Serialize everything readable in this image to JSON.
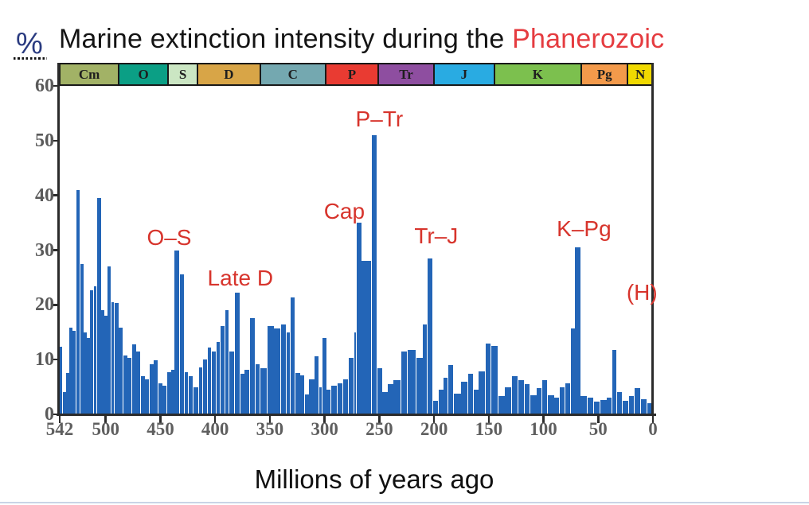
{
  "title": {
    "black_part": "Marine extinction intensity during the ",
    "red_part": "Phanerozoic"
  },
  "chart_data": {
    "type": "bar",
    "title": "Marine extinction intensity during the Phanerozoic",
    "xlabel": "Millions of years ago",
    "ylabel": "%",
    "x_range_ma": [
      542,
      0
    ],
    "ylim": [
      0,
      60
    ],
    "grid": false,
    "legend": "none",
    "y_ticks": [
      60,
      50,
      40,
      30,
      20,
      10,
      0
    ],
    "x_ticks": [
      542,
      500,
      450,
      400,
      350,
      300,
      250,
      200,
      150,
      100,
      50,
      0
    ],
    "bar_color": "#2365b7",
    "bars_format": "[start_age_Ma, end_age_Ma, extinction_intensity_percent]",
    "bars": [
      [
        542,
        539,
        12.4
      ],
      [
        539,
        536,
        4
      ],
      [
        536,
        533,
        7.5
      ],
      [
        533,
        530,
        15.8
      ],
      [
        530,
        527,
        15.2
      ],
      [
        527,
        523,
        41
      ],
      [
        523,
        520,
        27.5
      ],
      [
        520,
        517,
        15
      ],
      [
        517,
        514,
        14
      ],
      [
        514,
        511,
        22.7
      ],
      [
        511,
        508,
        23.4
      ],
      [
        508,
        504,
        39.5
      ],
      [
        504,
        501,
        19
      ],
      [
        501,
        498,
        18
      ],
      [
        498,
        495,
        27
      ],
      [
        495,
        492,
        20.5
      ],
      [
        492,
        488,
        20.3
      ],
      [
        488,
        484,
        15.9
      ],
      [
        484,
        480,
        10.8
      ],
      [
        480,
        476,
        10.3
      ],
      [
        476,
        472,
        12.8
      ],
      [
        472,
        468,
        11.5
      ],
      [
        468,
        464,
        7
      ],
      [
        464,
        460,
        6.4
      ],
      [
        460,
        456,
        9.2
      ],
      [
        456,
        452,
        9.9
      ],
      [
        452,
        448,
        5.7
      ],
      [
        448,
        444,
        5.2
      ],
      [
        444,
        440,
        7.7
      ],
      [
        440,
        437,
        8.2
      ],
      [
        437,
        432,
        30
      ],
      [
        432,
        428,
        25.5
      ],
      [
        428,
        424,
        7.7
      ],
      [
        424,
        420,
        7
      ],
      [
        420,
        415,
        5
      ],
      [
        415,
        411,
        8.6
      ],
      [
        411,
        407,
        10
      ],
      [
        407,
        403,
        12.2
      ],
      [
        403,
        399,
        11.5
      ],
      [
        399,
        395,
        13.2
      ],
      [
        395,
        391,
        16.2
      ],
      [
        391,
        387,
        19.1
      ],
      [
        387,
        382,
        11.5
      ],
      [
        382,
        377,
        22.3
      ],
      [
        377,
        373,
        7.4
      ],
      [
        373,
        368,
        8.2
      ],
      [
        368,
        363,
        17.6
      ],
      [
        363,
        359,
        9.2
      ],
      [
        359,
        352,
        8.4
      ],
      [
        352,
        346,
        16.2
      ],
      [
        346,
        340,
        15.7
      ],
      [
        340,
        335,
        16.4
      ],
      [
        335,
        331,
        15
      ],
      [
        331,
        327,
        21.3
      ],
      [
        327,
        322,
        7.5
      ],
      [
        322,
        318,
        7.1
      ],
      [
        318,
        314,
        3.6
      ],
      [
        314,
        309,
        6.4
      ],
      [
        309,
        305,
        10.6
      ],
      [
        305,
        302,
        5
      ],
      [
        302,
        298,
        14
      ],
      [
        298,
        294,
        4.5
      ],
      [
        294,
        288,
        5.2
      ],
      [
        288,
        283,
        5.7
      ],
      [
        283,
        278,
        6.4
      ],
      [
        278,
        273,
        10.3
      ],
      [
        273,
        271,
        15
      ],
      [
        271,
        266,
        35
      ],
      [
        266,
        257,
        28
      ],
      [
        257,
        252,
        51
      ],
      [
        252,
        247,
        8.5
      ],
      [
        247,
        242,
        4
      ],
      [
        242,
        237,
        5.5
      ],
      [
        237,
        230,
        6.3
      ],
      [
        230,
        224,
        11.5
      ],
      [
        224,
        216,
        11.8
      ],
      [
        216,
        210,
        10.3
      ],
      [
        210,
        206,
        16.4
      ],
      [
        206,
        201,
        28.5
      ],
      [
        201,
        196,
        2.5
      ],
      [
        196,
        191,
        4.5
      ],
      [
        191,
        187,
        6.7
      ],
      [
        187,
        182,
        9
      ],
      [
        182,
        175,
        3.8
      ],
      [
        175,
        169,
        5.9
      ],
      [
        169,
        164,
        7.4
      ],
      [
        164,
        159,
        4.5
      ],
      [
        159,
        153,
        7.9
      ],
      [
        153,
        148,
        13
      ],
      [
        148,
        141,
        12.5
      ],
      [
        141,
        135,
        3.3
      ],
      [
        135,
        129,
        5
      ],
      [
        129,
        123,
        7
      ],
      [
        123,
        117,
        6.3
      ],
      [
        117,
        112,
        5.5
      ],
      [
        112,
        106,
        3.5
      ],
      [
        106,
        101,
        4.8
      ],
      [
        101,
        96,
        6.3
      ],
      [
        96,
        90,
        3.5
      ],
      [
        90,
        85,
        3.1
      ],
      [
        85,
        80,
        5
      ],
      [
        80,
        75,
        5.7
      ],
      [
        75,
        71,
        15.7
      ],
      [
        71,
        66,
        30.5
      ],
      [
        66,
        60,
        3.3
      ],
      [
        60,
        54,
        3
      ],
      [
        54,
        48,
        2.3
      ],
      [
        48,
        42,
        2.6
      ],
      [
        42,
        37,
        3.1
      ],
      [
        37,
        33,
        11.8
      ],
      [
        33,
        28,
        4.1
      ],
      [
        28,
        22,
        2.5
      ],
      [
        22,
        17,
        3.3
      ],
      [
        17,
        11,
        4.8
      ],
      [
        11,
        5,
        2.8
      ],
      [
        5,
        0,
        2
      ]
    ],
    "periods": [
      {
        "label": "Cm",
        "start": 542,
        "end": 488,
        "color": "#a2b266"
      },
      {
        "label": "O",
        "start": 488,
        "end": 443,
        "color": "#0b9f85"
      },
      {
        "label": "S",
        "start": 443,
        "end": 416,
        "color": "#cbe6c3"
      },
      {
        "label": "D",
        "start": 416,
        "end": 359,
        "color": "#d8a547"
      },
      {
        "label": "C",
        "start": 359,
        "end": 299,
        "color": "#74a8b0"
      },
      {
        "label": "P",
        "start": 299,
        "end": 251,
        "color": "#e93b32"
      },
      {
        "label": "Tr",
        "start": 251,
        "end": 200,
        "color": "#8e4ea0"
      },
      {
        "label": "J",
        "start": 200,
        "end": 145,
        "color": "#29abe2"
      },
      {
        "label": "K",
        "start": 145,
        "end": 65.5,
        "color": "#7cc04e"
      },
      {
        "label": "Pg",
        "start": 65.5,
        "end": 23,
        "color": "#f39a4b"
      },
      {
        "label": "N",
        "start": 23,
        "end": 0,
        "color": "#f0d900"
      }
    ],
    "annotations": [
      {
        "label": "O–S",
        "age": 442,
        "pct": 32.2
      },
      {
        "label": "Late D",
        "age": 377,
        "pct": 24.8
      },
      {
        "label": "Cap",
        "age": 282,
        "pct": 37.1
      },
      {
        "label": "P–Tr",
        "age": 250,
        "pct": 53.9
      },
      {
        "label": "Tr–J",
        "age": 198,
        "pct": 32.5
      },
      {
        "label": "K–Pg",
        "age": 63,
        "pct": 33.9
      },
      {
        "label": "(H)",
        "age": 10,
        "pct": 22.3
      }
    ],
    "colors": {
      "bar": "#2365b7",
      "axis": "#2b2b2b",
      "tick_label": "#5a5a5a",
      "annotation_red": "#d7342c",
      "title_red": "#e53c40",
      "title_black": "#141414",
      "percent_label_blue": "#2a3b80",
      "band_border": "#191919"
    }
  }
}
